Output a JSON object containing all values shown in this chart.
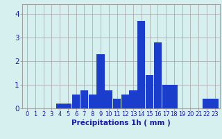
{
  "hours": [
    0,
    1,
    2,
    3,
    4,
    5,
    6,
    7,
    8,
    9,
    10,
    11,
    12,
    13,
    14,
    15,
    16,
    17,
    18,
    19,
    20,
    21,
    22,
    23
  ],
  "values": [
    0,
    0,
    0,
    0,
    0.2,
    0.2,
    0.6,
    0.75,
    0.6,
    2.3,
    0.75,
    0.4,
    0.6,
    0.75,
    3.7,
    1.4,
    2.8,
    1.0,
    1.0,
    0,
    0,
    0,
    0.4,
    0.4
  ],
  "bar_color": "#1a3dcc",
  "background_color": "#d6f0f0",
  "grid_color": "#a0a0a0",
  "xlabel": "Précipitations 1h ( mm )",
  "ylim": [
    0,
    4.4
  ],
  "yticks": [
    0,
    1,
    2,
    3,
    4
  ],
  "label_color": "#1a1aaa",
  "xlabel_fontsize": 7.5,
  "tick_fontsize": 6.0,
  "ytick_fontsize": 7.5
}
